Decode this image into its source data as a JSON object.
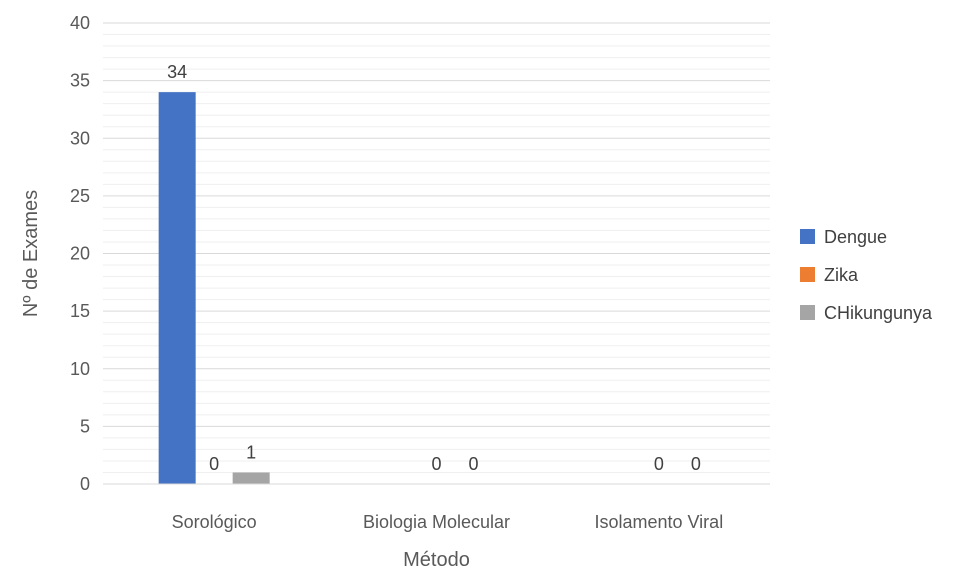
{
  "chart_data": {
    "type": "bar",
    "title": "",
    "xlabel": "Método",
    "ylabel": "Nº de Exames",
    "ylim": [
      0,
      40
    ],
    "ytick_step": 5,
    "minor_gridlines": true,
    "categories": [
      "Sorológico",
      "Biologia Molecular",
      "Isolamento Viral"
    ],
    "series": [
      {
        "name": "Dengue",
        "values": [
          34,
          0,
          0
        ],
        "color": "#4472C4"
      },
      {
        "name": "Zika",
        "values": [
          0,
          0,
          0
        ],
        "color": "#ED7D31"
      },
      {
        "name": "CHikungunya",
        "values": [
          1,
          0,
          0
        ],
        "color": "#A5A5A5"
      }
    ],
    "data_labels": [
      [
        "34",
        "",
        ""
      ],
      [
        "0",
        "0",
        "0"
      ],
      [
        "1",
        "0",
        "0"
      ]
    ],
    "legend_position": "right",
    "grid": true
  }
}
